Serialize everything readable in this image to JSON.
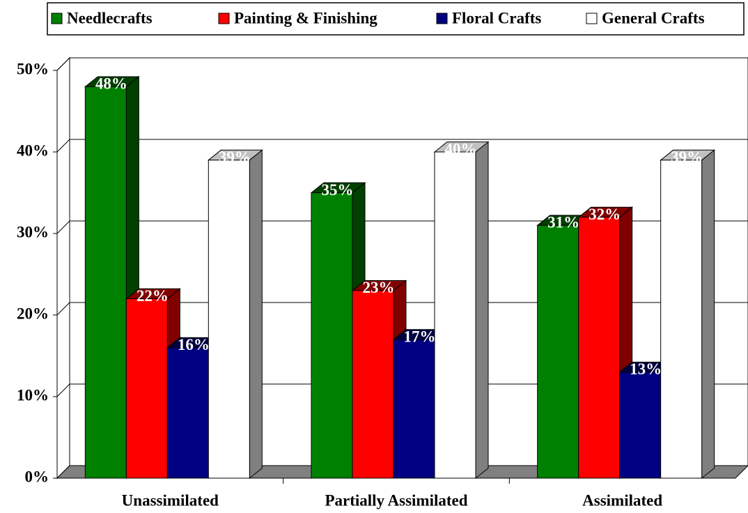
{
  "chart_data": {
    "type": "bar3d",
    "categories": [
      "Unassimilated",
      "Partially Assimilated",
      "Assimilated"
    ],
    "series": [
      {
        "name": "Needlecrafts",
        "color": "#008000",
        "values": [
          48,
          35,
          31
        ],
        "value_labels": [
          "48%",
          "35%",
          "31%"
        ]
      },
      {
        "name": "Painting & Finishing",
        "color": "#ff0000",
        "values": [
          22,
          23,
          32
        ],
        "value_labels": [
          "22%",
          "23%",
          "32%"
        ]
      },
      {
        "name": "Floral Crafts",
        "color": "#000080",
        "values": [
          16,
          17,
          13
        ],
        "value_labels": [
          "16%",
          "17%",
          "13%"
        ]
      },
      {
        "name": "General Crafts",
        "color": "#ffffff",
        "values": [
          39,
          40,
          39
        ],
        "value_labels": [
          "39%",
          "40%",
          "39%"
        ]
      }
    ],
    "ylim": [
      0,
      50
    ],
    "yticks": [
      {
        "value": 0,
        "label": "0%"
      },
      {
        "value": 10,
        "label": "10%"
      },
      {
        "value": 20,
        "label": "20%"
      },
      {
        "value": 30,
        "label": "30%"
      },
      {
        "value": 40,
        "label": "40%"
      },
      {
        "value": 50,
        "label": "50%"
      }
    ],
    "grid": true,
    "legend": "top"
  }
}
